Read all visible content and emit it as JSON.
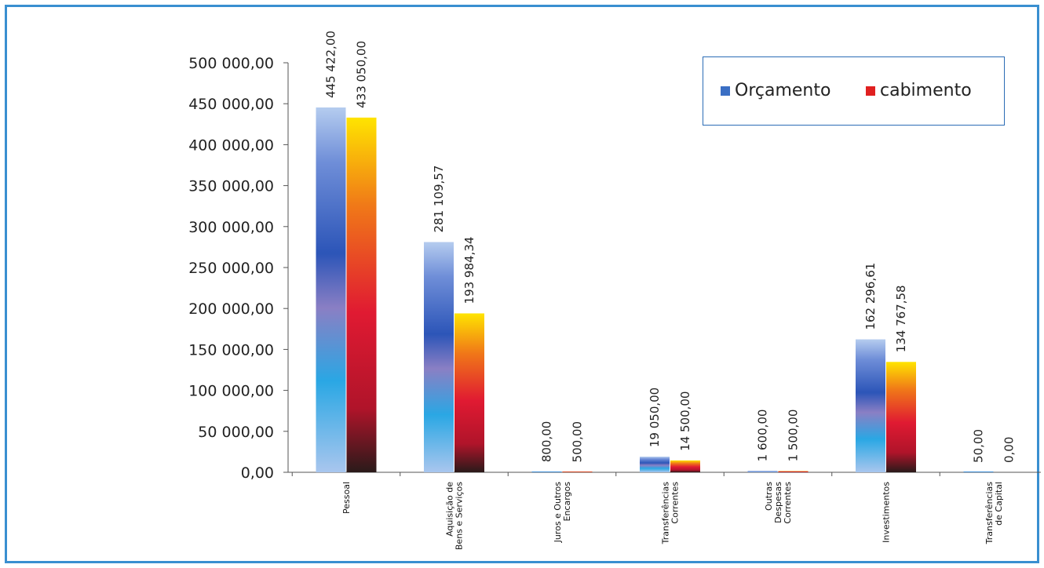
{
  "chart_data": {
    "type": "bar",
    "categories": [
      [
        "Pessoal"
      ],
      [
        "Aquisição de",
        "Bens e Serviços"
      ],
      [
        "Juros e Outros",
        "Encargos"
      ],
      [
        "Transferências",
        "Correntes"
      ],
      [
        "Outras",
        "Despesas",
        "Correntes"
      ],
      [
        "Investimentos"
      ],
      [
        "Transferências",
        "de Capital"
      ]
    ],
    "series": [
      {
        "name": "Orçamento",
        "values": [
          445422.0,
          281109.57,
          800.0,
          19050.0,
          1600.0,
          162296.61,
          50.0
        ],
        "labels": [
          "445 422,00",
          "281 109,57",
          "800,00",
          "19 050,00",
          "1 600,00",
          "162 296,61",
          "50,00"
        ],
        "color": "#3b6fc4"
      },
      {
        "name": "cabimento",
        "values": [
          433050.0,
          193984.34,
          500.0,
          14500.0,
          1500.0,
          134767.58,
          0.0
        ],
        "labels": [
          "433 050,00",
          "193 984,34",
          "500,00",
          "14 500,00",
          "1 500,00",
          "134 767,58",
          "0,00"
        ],
        "color": "#e02020"
      }
    ],
    "ylim": [
      0,
      500000
    ],
    "yticks": [
      {
        "value": 0,
        "label": "0,00"
      },
      {
        "value": 50000,
        "label": "50 000,00"
      },
      {
        "value": 100000,
        "label": "100 000,00"
      },
      {
        "value": 150000,
        "label": "150 000,00"
      },
      {
        "value": 200000,
        "label": "200 000,00"
      },
      {
        "value": 250000,
        "label": "250 000,00"
      },
      {
        "value": 300000,
        "label": "300 000,00"
      },
      {
        "value": 350000,
        "label": "350 000,00"
      },
      {
        "value": 400000,
        "label": "400 000,00"
      },
      {
        "value": 450000,
        "label": "450 000,00"
      },
      {
        "value": 500000,
        "label": "500 000,00"
      }
    ],
    "grid": false,
    "legend_position": "top-right"
  },
  "legend": {
    "orcamento_label": "Orçamento",
    "cabimento_label": "cabimento"
  }
}
